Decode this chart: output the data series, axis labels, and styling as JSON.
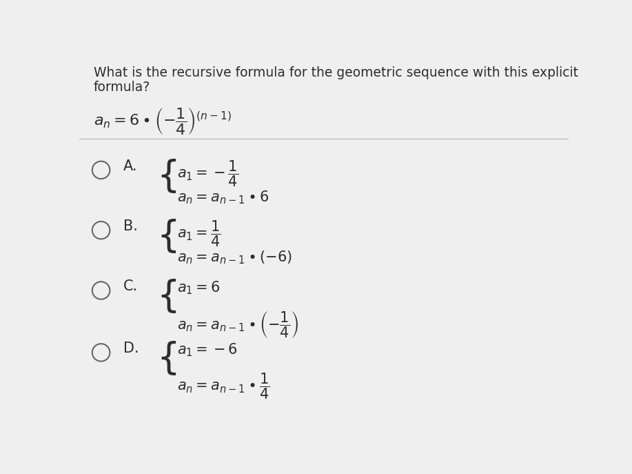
{
  "bg_color": "#f0efef",
  "question_line1": "What is the recursive formula for the geometric sequence with this explicit",
  "question_line2": "formula?",
  "explicit_formula": "$a_n = 6 \\bullet \\left(-\\dfrac{1}{4}\\right)^{(n-1)}$",
  "options": [
    {
      "label": "A.",
      "line1": "$a_1 = -\\dfrac{1}{4}$",
      "line2": "$a_n = a_{n-1} \\bullet 6$"
    },
    {
      "label": "B.",
      "line1": "$a_1 = \\dfrac{1}{4}$",
      "line2": "$a_n = a_{n-1} \\bullet (-6)$"
    },
    {
      "label": "C.",
      "line1": "$a_1 = 6$",
      "line2": "$a_n = a_{n-1} \\bullet \\left(-\\dfrac{1}{4}\\right)$"
    },
    {
      "label": "D.",
      "line1": "$a_1 = -6$",
      "line2": "$a_n = a_{n-1} \\bullet \\dfrac{1}{4}$"
    }
  ],
  "text_color": "#2d2d2d",
  "question_fontsize": 13.5,
  "formula_fontsize": 16,
  "option_fontsize": 15,
  "label_fontsize": 15
}
